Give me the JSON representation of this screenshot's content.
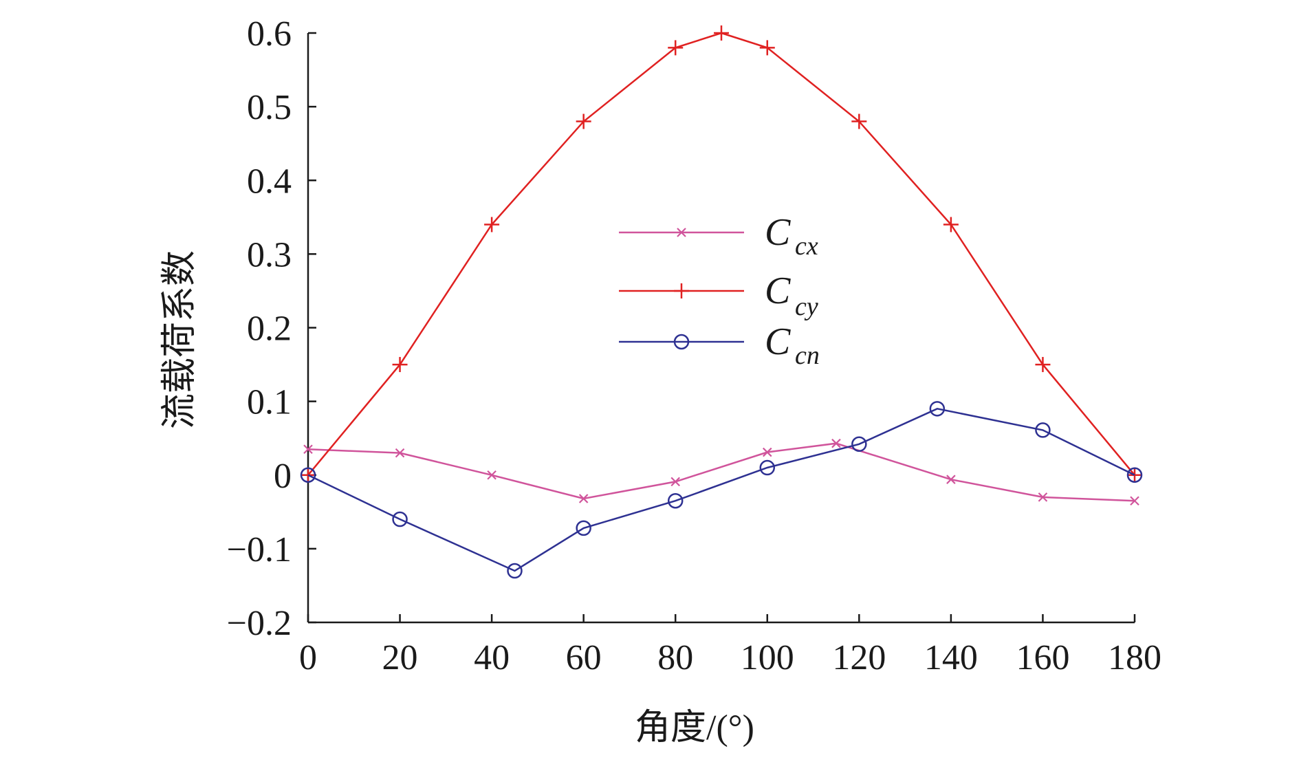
{
  "chart_data": {
    "type": "line",
    "xlabel": "角度/(°)",
    "ylabel": "流载荷系数",
    "xlim": [
      0,
      180
    ],
    "ylim": [
      -0.2,
      0.6
    ],
    "xticks": [
      0,
      20,
      40,
      60,
      80,
      100,
      120,
      140,
      160,
      180
    ],
    "xtick_labels": [
      "0",
      "20",
      "40",
      "60",
      "80",
      "100",
      "120",
      "140",
      "160",
      "180"
    ],
    "yticks": [
      -0.2,
      -0.1,
      0,
      0.1,
      0.2,
      0.3,
      0.4,
      0.5,
      0.6
    ],
    "ytick_labels": [
      "−0.2",
      "−0.1",
      "0",
      "0.1",
      "0.2",
      "0.3",
      "0.4",
      "0.5",
      "0.6"
    ],
    "grid": false,
    "legend_position": "center",
    "series": [
      {
        "name": "C_cx",
        "label_main": "C",
        "label_sub": "cx",
        "color": "#d0549b",
        "marker": "x",
        "x": [
          0,
          20,
          40,
          60,
          80,
          100,
          115,
          140,
          160,
          180
        ],
        "y": [
          0.035,
          0.03,
          0.0,
          -0.032,
          -0.009,
          0.031,
          0.043,
          -0.006,
          -0.03,
          -0.035
        ]
      },
      {
        "name": "C_cy",
        "label_main": "C",
        "label_sub": "cy",
        "color": "#e02121",
        "marker": "+",
        "x": [
          0,
          20,
          40,
          60,
          80,
          90,
          100,
          120,
          140,
          160,
          180
        ],
        "y": [
          0.0,
          0.15,
          0.34,
          0.48,
          0.58,
          0.6,
          0.58,
          0.48,
          0.34,
          0.15,
          0.0
        ]
      },
      {
        "name": "C_cn",
        "label_main": "C",
        "label_sub": "cn",
        "color": "#2e3192",
        "marker": "o",
        "x": [
          0,
          20,
          45,
          60,
          80,
          100,
          120,
          137,
          160,
          180
        ],
        "y": [
          0.0,
          -0.06,
          -0.13,
          -0.072,
          -0.035,
          0.01,
          0.042,
          0.09,
          0.061,
          0.0
        ]
      }
    ]
  }
}
